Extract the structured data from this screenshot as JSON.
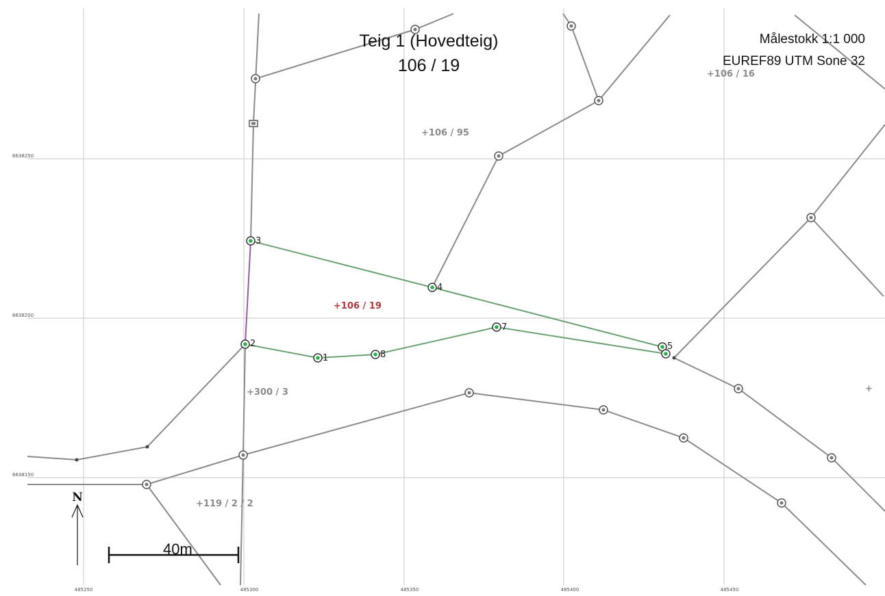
{
  "title": {
    "line1": "Teig 1 (Hovedteig)",
    "line2": "106 / 19"
  },
  "meta": {
    "scale": "Målestokk 1:1 000",
    "crs": "EUREF89 UTM Sone 32"
  },
  "grid": {
    "easting_labels": [
      "485250",
      "485300",
      "485350",
      "485400",
      "485450"
    ],
    "northing_labels": [
      "6638250",
      "6638200",
      "6638150"
    ]
  },
  "parcels": {
    "p106_95": "+106 / 95",
    "p106_16": "+106 / 16",
    "p106_19": "+106 / 19",
    "p300_3": "+300 / 3",
    "p119_2_2": "+119 / 2 / 2",
    "unlabeled": "+"
  },
  "boundary_points": {
    "pt1": "1",
    "pt2": "2",
    "pt3": "3",
    "pt4": "4",
    "pt5": "5",
    "pt7": "7",
    "pt8": "8"
  },
  "north_arrow": "N",
  "scale_bar": "40m",
  "colors": {
    "main_parcel_boundary": "#6aa272",
    "other_boundaries": "#8a8a8a",
    "main_parcel_label": "#b03a3a",
    "segment_2_3": "#a24bb0"
  }
}
